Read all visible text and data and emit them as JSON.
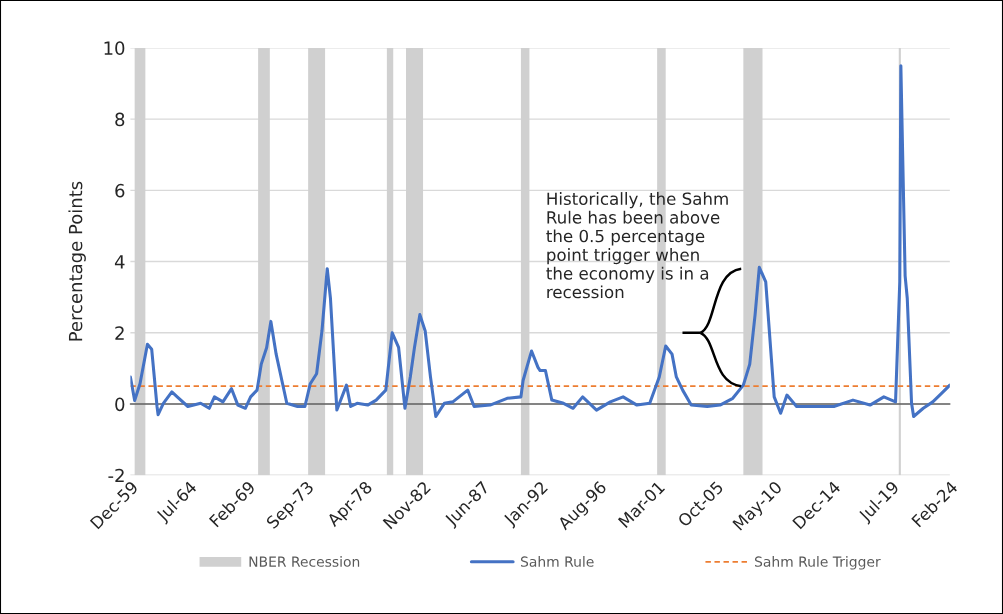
{
  "chart_data": {
    "type": "line",
    "ylabel": "Percentage Points",
    "series": [
      {
        "name": "Sahm Rule",
        "color": "#4472c4",
        "x": [
          "1959-12",
          "1960-04",
          "1960-09",
          "1961-04",
          "1961-08",
          "1962-01",
          "1962-02",
          "1962-07",
          "1963-03",
          "1963-08",
          "1964-06",
          "1965-06",
          "1966-02",
          "1966-07",
          "1967-03",
          "1967-11",
          "1968-05",
          "1968-12",
          "1969-05",
          "1969-11",
          "1970-03",
          "1970-08",
          "1970-12",
          "1971-05",
          "1971-11",
          "1972-03",
          "1973-01",
          "1973-08",
          "1974-01",
          "1974-07",
          "1974-12",
          "1975-05",
          "1975-08",
          "1976-02",
          "1976-11",
          "1977-03",
          "1977-09",
          "1978-07",
          "1979-03",
          "1979-12",
          "1980-06",
          "1980-12",
          "1981-06",
          "1981-11",
          "1982-03",
          "1982-08",
          "1983-01",
          "1983-06",
          "1983-11",
          "1984-07",
          "1985-03",
          "1986-05",
          "1986-11",
          "1988-02",
          "1989-06",
          "1990-07",
          "1990-09",
          "1991-05",
          "1991-11",
          "1992-01",
          "1992-06",
          "1992-12",
          "1993-11",
          "1994-08",
          "1995-05",
          "1996-06",
          "1997-07",
          "1998-07",
          "1999-08",
          "2000-08",
          "2001-05",
          "2001-11",
          "2002-05",
          "2002-09",
          "2003-03",
          "2003-11",
          "2005-02",
          "2006-02",
          "2007-02",
          "2007-12",
          "2008-06",
          "2008-11",
          "2009-03",
          "2009-09",
          "2010-05",
          "2010-11",
          "2011-05",
          "2012-02",
          "2013-06",
          "2015-01",
          "2016-07",
          "2017-11",
          "2018-12",
          "2019-11",
          "2020-03",
          "2020-04",
          "2020-08",
          "2020-10",
          "2021-02",
          "2021-04",
          "2022-01",
          "2022-10",
          "2023-06",
          "2024-02"
        ],
        "values": [
          0.76,
          0.1,
          0.57,
          1.68,
          1.54,
          -0.07,
          -0.3,
          0.02,
          0.34,
          0.2,
          -0.07,
          0.02,
          -0.12,
          0.2,
          0.06,
          0.43,
          -0.03,
          -0.12,
          0.2,
          0.39,
          1.12,
          1.58,
          2.32,
          1.4,
          0.57,
          0.02,
          -0.07,
          -0.07,
          0.57,
          0.85,
          2.05,
          3.8,
          2.97,
          -0.17,
          0.53,
          -0.07,
          0.02,
          -0.03,
          0.11,
          0.39,
          2.0,
          1.59,
          -0.12,
          0.76,
          1.59,
          2.51,
          2.05,
          0.76,
          -0.35,
          0.02,
          0.06,
          0.39,
          -0.07,
          -0.03,
          0.16,
          0.2,
          0.66,
          1.49,
          1.03,
          0.94,
          0.94,
          0.11,
          0.02,
          -0.12,
          0.2,
          -0.17,
          0.06,
          0.2,
          -0.03,
          0.02,
          0.76,
          1.63,
          1.4,
          0.76,
          0.39,
          -0.03,
          -0.07,
          -0.03,
          0.16,
          0.53,
          1.12,
          2.51,
          3.84,
          3.43,
          0.2,
          -0.26,
          0.25,
          -0.07,
          -0.07,
          -0.07,
          0.11,
          -0.03,
          0.2,
          0.06,
          3.43,
          9.5,
          3.6,
          2.97,
          0.02,
          -0.35,
          -0.12,
          0.06,
          0.29,
          0.53
        ]
      }
    ],
    "ref_lines": [
      {
        "axis": "y",
        "value": 0.5,
        "label": "Sahm Rule Trigger",
        "color": "#ed7d31",
        "line_style": "dashed"
      }
    ],
    "bands": [
      {
        "axis": "x",
        "from": "1960-04",
        "to": "1961-02",
        "label": "NBER Recession",
        "color": "#d0d0d0"
      },
      {
        "axis": "x",
        "from": "1969-12",
        "to": "1970-11",
        "color": "#d0d0d0"
      },
      {
        "axis": "x",
        "from": "1973-11",
        "to": "1975-03",
        "color": "#d0d0d0"
      },
      {
        "axis": "x",
        "from": "1980-01",
        "to": "1980-07",
        "color": "#d0d0d0"
      },
      {
        "axis": "x",
        "from": "1981-07",
        "to": "1982-11",
        "color": "#d0d0d0"
      },
      {
        "axis": "x",
        "from": "1990-07",
        "to": "1991-03",
        "color": "#d0d0d0"
      },
      {
        "axis": "x",
        "from": "2001-03",
        "to": "2001-11",
        "color": "#d0d0d0"
      },
      {
        "axis": "x",
        "from": "2007-12",
        "to": "2009-06",
        "color": "#d0d0d0"
      },
      {
        "axis": "x",
        "from": "2020-02",
        "to": "2020-04",
        "color": "#d0d0d0"
      }
    ],
    "annotations": [
      {
        "text": "Historically, the Sahm\nRule has been above\nthe 0.5 percentage\npoint trigger when\nthe economy is in a\nrecession",
        "x": "2007-10",
        "y": 2.0
      }
    ],
    "xlim": [
      "1959-12",
      "2024-02"
    ],
    "xticks": [
      {
        "value": "1959-12",
        "label": "Dec-59"
      },
      {
        "value": "1964-07",
        "label": "Jul-64"
      },
      {
        "value": "1969-02",
        "label": "Feb-69"
      },
      {
        "value": "1973-09",
        "label": "Sep-73"
      },
      {
        "value": "1978-04",
        "label": "Apr-78"
      },
      {
        "value": "1982-11",
        "label": "Nov-82"
      },
      {
        "value": "1987-06",
        "label": "Jun-87"
      },
      {
        "value": "1992-01",
        "label": "Jan-92"
      },
      {
        "value": "1996-08",
        "label": "Aug-96"
      },
      {
        "value": "2001-03",
        "label": "Mar-01"
      },
      {
        "value": "2005-10",
        "label": "Oct-05"
      },
      {
        "value": "2010-05",
        "label": "May-10"
      },
      {
        "value": "2014-12",
        "label": "Dec-14"
      },
      {
        "value": "2019-07",
        "label": "Jul-19"
      },
      {
        "value": "2024-02",
        "label": "Feb-24"
      }
    ],
    "ylim": [
      -2,
      10
    ],
    "yticks": [
      -2,
      0,
      2,
      4,
      6,
      8,
      10
    ],
    "grid": "y",
    "legend": "bottom"
  }
}
